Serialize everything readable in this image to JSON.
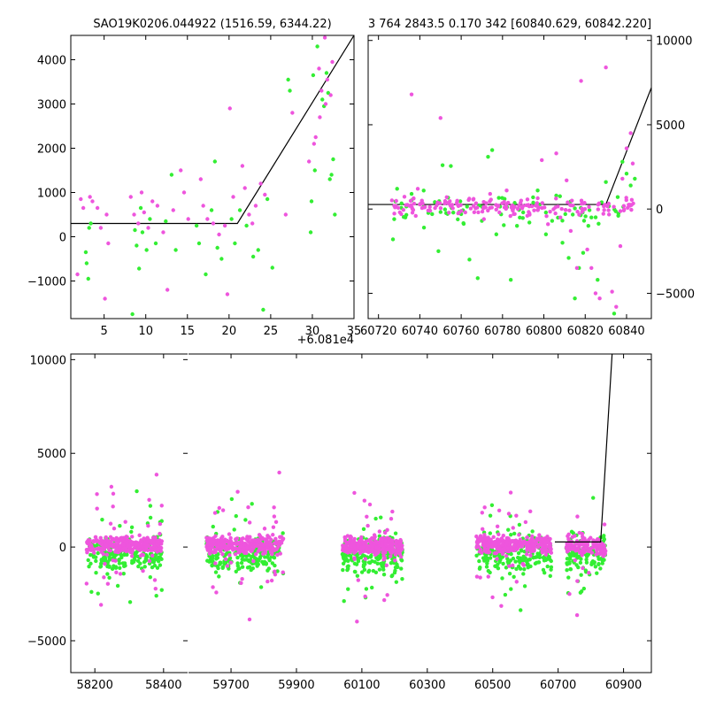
{
  "chart_data": [
    {
      "type": "scatter",
      "title": "SAO19K0206.044922 (1516.59, 6344.22)",
      "offset_label": "+6.081e4",
      "xlim": [
        1,
        35
      ],
      "ylim": [
        -1850,
        4550
      ],
      "xticks": [
        5,
        10,
        15,
        20,
        25,
        30,
        35
      ],
      "yticks": [
        -1000,
        0,
        1000,
        2000,
        3000,
        4000
      ],
      "ytick_side": "left",
      "model_line": {
        "x": [
          1,
          21,
          35
        ],
        "y": [
          300,
          300,
          4550
        ]
      },
      "series": [
        {
          "color": "#33ee33",
          "points": [
            [
              2.8,
              -350
            ],
            [
              2.9,
              -600
            ],
            [
              3.1,
              -950
            ],
            [
              3.2,
              200
            ],
            [
              3.4,
              300
            ],
            [
              8.7,
              150
            ],
            [
              8.9,
              -200
            ],
            [
              9.2,
              -720
            ],
            [
              9.4,
              650
            ],
            [
              9.6,
              100
            ],
            [
              10.1,
              -300
            ],
            [
              10.5,
              400
            ],
            [
              11.2,
              -150
            ],
            [
              12.4,
              350
            ],
            [
              13.1,
              1400
            ],
            [
              13.6,
              -300
            ],
            [
              16.1,
              250
            ],
            [
              16.4,
              -150
            ],
            [
              17.2,
              -850
            ],
            [
              17.9,
              600
            ],
            [
              18.3,
              1700
            ],
            [
              18.6,
              -250
            ],
            [
              19.1,
              -500
            ],
            [
              20.3,
              400
            ],
            [
              20.7,
              -150
            ],
            [
              21.3,
              600
            ],
            [
              22.1,
              250
            ],
            [
              22.9,
              -450
            ],
            [
              23.5,
              -300
            ],
            [
              24.1,
              -1650
            ],
            [
              24.6,
              850
            ],
            [
              25.2,
              -700
            ],
            [
              27.1,
              3550
            ],
            [
              27.3,
              3300
            ],
            [
              29.8,
              100
            ],
            [
              29.9,
              800
            ],
            [
              30.1,
              3650
            ],
            [
              30.3,
              1500
            ],
            [
              30.6,
              4300
            ],
            [
              31.2,
              3100
            ],
            [
              31.4,
              2950
            ],
            [
              31.7,
              3700
            ],
            [
              31.9,
              3250
            ],
            [
              32.1,
              1300
            ],
            [
              32.3,
              1400
            ],
            [
              32.5,
              1750
            ],
            [
              32.7,
              500
            ],
            [
              8.4,
              -1750
            ]
          ]
        },
        {
          "color": "#ee55dd",
          "points": [
            [
              1.8,
              -850
            ],
            [
              2.2,
              850
            ],
            [
              2.5,
              650
            ],
            [
              3.3,
              900
            ],
            [
              3.6,
              800
            ],
            [
              4.2,
              650
            ],
            [
              4.6,
              200
            ],
            [
              5.1,
              -1400
            ],
            [
              5.3,
              500
            ],
            [
              5.5,
              -150
            ],
            [
              8.2,
              900
            ],
            [
              8.6,
              500
            ],
            [
              9.1,
              300
            ],
            [
              9.5,
              1000
            ],
            [
              9.8,
              550
            ],
            [
              10.3,
              200
            ],
            [
              10.8,
              800
            ],
            [
              11.4,
              700
            ],
            [
              12.1,
              100
            ],
            [
              12.6,
              -1200
            ],
            [
              13.3,
              600
            ],
            [
              14.2,
              1500
            ],
            [
              14.6,
              1000
            ],
            [
              15.1,
              400
            ],
            [
              16.6,
              1300
            ],
            [
              16.9,
              700
            ],
            [
              17.4,
              400
            ],
            [
              18.1,
              300
            ],
            [
              18.8,
              50
            ],
            [
              19.5,
              250
            ],
            [
              19.8,
              -1300
            ],
            [
              20.1,
              2900
            ],
            [
              20.5,
              900
            ],
            [
              21.6,
              1600
            ],
            [
              21.9,
              1100
            ],
            [
              22.4,
              500
            ],
            [
              22.8,
              300
            ],
            [
              23.2,
              700
            ],
            [
              23.8,
              1200
            ],
            [
              24.3,
              950
            ],
            [
              26.8,
              500
            ],
            [
              27.6,
              2800
            ],
            [
              29.6,
              1700
            ],
            [
              30.2,
              2100
            ],
            [
              30.4,
              2250
            ],
            [
              30.8,
              3800
            ],
            [
              31.1,
              3300
            ],
            [
              31.6,
              3000
            ],
            [
              31.8,
              3550
            ],
            [
              32.2,
              3200
            ],
            [
              32.4,
              3950
            ],
            [
              31.5,
              4500
            ],
            [
              30.9,
              2700
            ]
          ]
        }
      ]
    },
    {
      "type": "scatter",
      "title": "3 764 2843.5 0.170 342 [60840.629, 60842.220]",
      "xlim": [
        60715,
        60852
      ],
      "ylim": [
        -6500,
        10300
      ],
      "xticks": [
        60720,
        60740,
        60760,
        60780,
        60800,
        60820,
        60840
      ],
      "yticks": [
        -5000,
        0,
        5000,
        10000
      ],
      "ytick_side": "right",
      "model_line": {
        "x": [
          60715,
          60830,
          60852
        ],
        "y": [
          270,
          270,
          7200
        ]
      },
      "series": [
        {
          "color": "#33ee33",
          "points": [
            [
              60727,
              -1800
            ],
            [
              60729,
              1200
            ],
            [
              60733,
              -500
            ],
            [
              60736,
              900
            ],
            [
              60742,
              -1100
            ],
            [
              60749,
              -2500
            ],
            [
              60751,
              2600
            ],
            [
              60755,
              2550
            ],
            [
              60760,
              -300
            ],
            [
              60764,
              -3000
            ],
            [
              60768,
              -4100
            ],
            [
              60770,
              -700
            ],
            [
              60773,
              3100
            ],
            [
              60775,
              3500
            ],
            [
              60777,
              -1500
            ],
            [
              60781,
              600
            ],
            [
              60784,
              -4200
            ],
            [
              60787,
              -1000
            ],
            [
              60790,
              -200
            ],
            [
              60793,
              -800
            ],
            [
              60797,
              1100
            ],
            [
              60801,
              -1500
            ],
            [
              60804,
              -700
            ],
            [
              60806,
              800
            ],
            [
              60809,
              -2000
            ],
            [
              60812,
              -2900
            ],
            [
              60815,
              -5300
            ],
            [
              60817,
              -3500
            ],
            [
              60819,
              -2600
            ],
            [
              60823,
              -500
            ],
            [
              60826,
              -4200
            ],
            [
              60830,
              1600
            ],
            [
              60834,
              -6200
            ],
            [
              60836,
              -400
            ],
            [
              60838,
              2800
            ],
            [
              60840,
              2100
            ],
            [
              60842,
              1400
            ],
            [
              60844,
              1800
            ]
          ]
        },
        {
          "color": "#ee55dd",
          "points": [
            [
              60728,
              100
            ],
            [
              60731,
              -300
            ],
            [
              60734,
              250
            ],
            [
              60736,
              6800
            ],
            [
              60739,
              1200
            ],
            [
              60741,
              500
            ],
            [
              60745,
              -100
            ],
            [
              60750,
              5400
            ],
            [
              60753,
              700
            ],
            [
              60758,
              300
            ],
            [
              60762,
              -200
            ],
            [
              60766,
              600
            ],
            [
              60771,
              -600
            ],
            [
              60774,
              900
            ],
            [
              60778,
              200
            ],
            [
              60782,
              1100
            ],
            [
              60785,
              -100
            ],
            [
              60789,
              500
            ],
            [
              60792,
              -400
            ],
            [
              60796,
              200
            ],
            [
              60799,
              2900
            ],
            [
              60802,
              -900
            ],
            [
              60806,
              3300
            ],
            [
              60808,
              -500
            ],
            [
              60811,
              1700
            ],
            [
              60813,
              -1300
            ],
            [
              60816,
              -3500
            ],
            [
              60818,
              7600
            ],
            [
              60821,
              -2400
            ],
            [
              60823,
              -3500
            ],
            [
              60825,
              -5000
            ],
            [
              60827,
              -5300
            ],
            [
              60830,
              8400
            ],
            [
              60833,
              -4900
            ],
            [
              60835,
              -5800
            ],
            [
              60838,
              1800
            ],
            [
              60840,
              3600
            ],
            [
              60842,
              4500
            ],
            [
              60843,
              2700
            ],
            [
              60837,
              -2200
            ]
          ]
        }
      ]
    },
    {
      "type": "scatter",
      "title": "",
      "broken_x_axis": true,
      "ylim": [
        -6700,
        10300
      ],
      "yticks": [
        -5000,
        0,
        5000,
        10000
      ],
      "panels": [
        {
          "xlim": [
            58130,
            58470
          ],
          "xticks": [
            58200,
            58400
          ],
          "clusters": [
            {
              "x_range": [
                58175,
                58395
              ],
              "n": 210,
              "seed": 11
            }
          ]
        },
        {
          "xlim": [
            59570,
            60985
          ],
          "xticks": [
            59700,
            59900,
            60100,
            60300,
            60500,
            60700,
            60900
          ],
          "clusters": [
            {
              "x_range": [
                59625,
                59860
              ],
              "n": 210,
              "seed": 23
            },
            {
              "x_range": [
                60040,
                60225
              ],
              "n": 210,
              "seed": 37
            },
            {
              "x_range": [
                60450,
                60680
              ],
              "n": 210,
              "seed": 51
            },
            {
              "x_range": [
                60725,
                60845
              ],
              "n": 110,
              "seed": 67
            }
          ],
          "model_line": {
            "x": [
              60690,
              60830,
              60865
            ],
            "y": [
              270,
              270,
              10300
            ]
          }
        }
      ],
      "series_colors": [
        "#33ee33",
        "#ee55dd"
      ]
    }
  ]
}
